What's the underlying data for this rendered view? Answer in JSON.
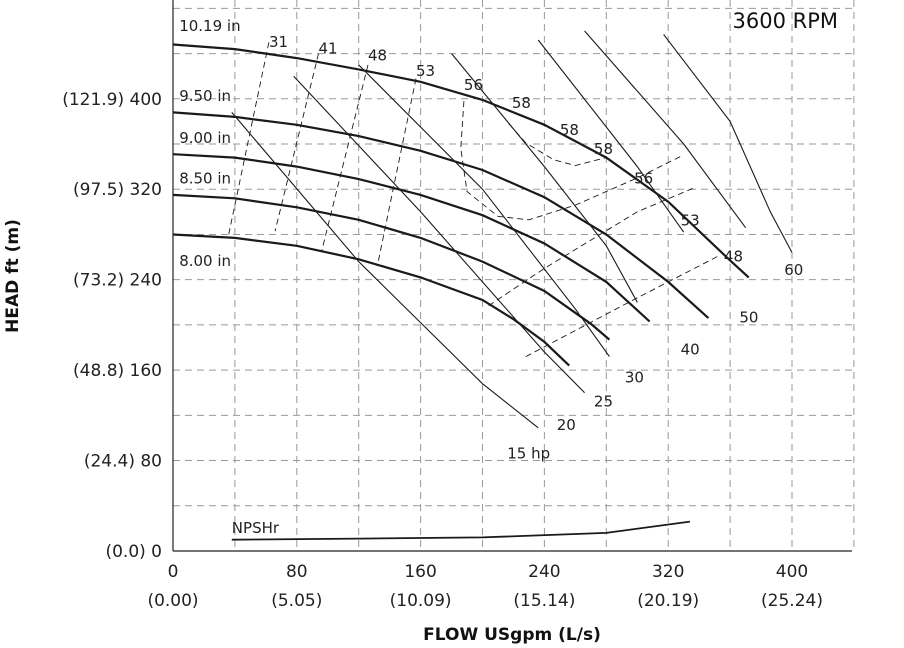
{
  "chart_data": {
    "type": "line",
    "title": "",
    "speed_label": "3600 RPM",
    "xlabel": "FLOW USgpm (L/s)",
    "ylabel": "HEAD ft (m)",
    "xlim": [
      0,
      440
    ],
    "ylim": [
      0,
      460
    ],
    "grid": true,
    "x_ticks": [
      {
        "value": 0,
        "label": "0",
        "sub": "(0.00)"
      },
      {
        "value": 80,
        "label": "80",
        "sub": "(5.05)"
      },
      {
        "value": 160,
        "label": "160",
        "sub": "(10.09)"
      },
      {
        "value": 240,
        "label": "240",
        "sub": "(15.14)"
      },
      {
        "value": 320,
        "label": "320",
        "sub": "(20.19)"
      },
      {
        "value": 400,
        "label": "400",
        "sub": "(25.24)"
      }
    ],
    "y_ticks": [
      {
        "value": 0,
        "label": "(0.0) 0"
      },
      {
        "value": 80,
        "label": "(24.4) 80"
      },
      {
        "value": 160,
        "label": "(48.8) 160"
      },
      {
        "value": 240,
        "label": "(73.2) 240"
      },
      {
        "value": 320,
        "label": "(97.5) 320"
      },
      {
        "value": 400,
        "label": "(121.9) 400"
      }
    ],
    "impeller_curves": [
      {
        "name": "10.19 in",
        "points": [
          [
            0,
            448
          ],
          [
            40,
            444
          ],
          [
            80,
            436
          ],
          [
            120,
            426
          ],
          [
            160,
            415
          ],
          [
            200,
            399
          ],
          [
            240,
            377
          ],
          [
            280,
            348
          ],
          [
            320,
            309
          ],
          [
            360,
            257
          ],
          [
            372,
            242
          ]
        ]
      },
      {
        "name": "9.50 in",
        "points": [
          [
            0,
            388
          ],
          [
            40,
            384
          ],
          [
            80,
            377
          ],
          [
            120,
            367
          ],
          [
            160,
            354
          ],
          [
            200,
            337
          ],
          [
            240,
            313
          ],
          [
            280,
            280
          ],
          [
            320,
            238
          ],
          [
            346,
            206
          ]
        ]
      },
      {
        "name": "9.00 in",
        "points": [
          [
            0,
            351
          ],
          [
            40,
            348
          ],
          [
            80,
            340
          ],
          [
            120,
            329
          ],
          [
            160,
            315
          ],
          [
            200,
            297
          ],
          [
            240,
            272
          ],
          [
            280,
            238
          ],
          [
            308,
            203
          ]
        ]
      },
      {
        "name": "8.50 in",
        "points": [
          [
            0,
            315
          ],
          [
            40,
            312
          ],
          [
            80,
            304
          ],
          [
            120,
            293
          ],
          [
            160,
            277
          ],
          [
            200,
            256
          ],
          [
            240,
            230
          ],
          [
            270,
            201
          ],
          [
            282,
            187
          ]
        ]
      },
      {
        "name": "8.00 in",
        "points": [
          [
            0,
            280
          ],
          [
            40,
            277
          ],
          [
            80,
            270
          ],
          [
            120,
            258
          ],
          [
            160,
            242
          ],
          [
            200,
            222
          ],
          [
            220,
            205
          ],
          [
            240,
            185
          ],
          [
            256,
            164
          ]
        ]
      }
    ],
    "hp_lines": [
      {
        "name": "15 hp",
        "points": [
          [
            38,
            388
          ],
          [
            120,
            256
          ],
          [
            200,
            148
          ],
          [
            236,
            109
          ]
        ]
      },
      {
        "name": "20",
        "points": [
          [
            78,
            420
          ],
          [
            160,
            300
          ],
          [
            240,
            176
          ],
          [
            266,
            140
          ]
        ]
      },
      {
        "name": "25",
        "points": [
          [
            120,
            430
          ],
          [
            200,
            320
          ],
          [
            260,
            214
          ],
          [
            282,
            172
          ]
        ]
      },
      {
        "name": "30",
        "points": [
          [
            180,
            440
          ],
          [
            240,
            340
          ],
          [
            280,
            270
          ],
          [
            300,
            220
          ]
        ]
      },
      {
        "name": "40",
        "points": [
          [
            236,
            452
          ],
          [
            300,
            340
          ],
          [
            330,
            282
          ]
        ]
      },
      {
        "name": "50",
        "points": [
          [
            266,
            460
          ],
          [
            330,
            360
          ],
          [
            370,
            286
          ]
        ]
      },
      {
        "name": "60",
        "points": [
          [
            317,
            457
          ],
          [
            360,
            380
          ],
          [
            386,
            300
          ],
          [
            400,
            264
          ]
        ]
      }
    ],
    "efficiency_contours": [
      {
        "name": "31",
        "points": [
          [
            62,
            450
          ],
          [
            36,
            280
          ]
        ]
      },
      {
        "name": "41",
        "points": [
          [
            94,
            440
          ],
          [
            66,
            283
          ]
        ]
      },
      {
        "name": "48",
        "points": [
          [
            126,
            430
          ],
          [
            96,
            265
          ]
        ]
      },
      {
        "name": "53",
        "points": [
          [
            157,
            418
          ],
          [
            132,
            252
          ]
        ]
      },
      {
        "name": "56",
        "points": [
          [
            188,
            398
          ],
          [
            186,
            356
          ],
          [
            190,
            318
          ],
          [
            210,
            296
          ],
          [
            230,
            293
          ],
          [
            260,
            306
          ],
          [
            300,
            330
          ],
          [
            328,
            349
          ]
        ]
      },
      {
        "name": "58",
        "points": [
          [
            217,
            378
          ],
          [
            228,
            361
          ],
          [
            246,
            346
          ],
          [
            260,
            341
          ],
          [
            280,
            348
          ]
        ]
      },
      {
        "name": "53",
        "points": [
          [
            204,
            217
          ],
          [
            240,
            250
          ],
          [
            300,
            300
          ],
          [
            338,
            322
          ]
        ]
      },
      {
        "name": "48",
        "points": [
          [
            228,
            172
          ],
          [
            300,
            224
          ],
          [
            354,
            262
          ]
        ]
      }
    ],
    "curve_labels": [
      {
        "text": "10.19 in",
        "x": 4,
        "y": 460
      },
      {
        "text": "9.50 in",
        "x": 4,
        "y": 398
      },
      {
        "text": "9.00 in",
        "x": 4,
        "y": 361
      },
      {
        "text": "8.50 in",
        "x": 4,
        "y": 325
      },
      {
        "text": "8.00 in",
        "x": 4,
        "y": 252
      },
      {
        "text": "31",
        "x": 62,
        "y": 446
      },
      {
        "text": "41",
        "x": 94,
        "y": 440
      },
      {
        "text": "48",
        "x": 126,
        "y": 434
      },
      {
        "text": "53",
        "x": 157,
        "y": 420
      },
      {
        "text": "56",
        "x": 188,
        "y": 408
      },
      {
        "text": "58",
        "x": 219,
        "y": 392
      },
      {
        "text": "58",
        "x": 250,
        "y": 368
      },
      {
        "text": "58",
        "x": 272,
        "y": 351
      },
      {
        "text": "56",
        "x": 298,
        "y": 325
      },
      {
        "text": "53",
        "x": 328,
        "y": 288
      },
      {
        "text": "48",
        "x": 356,
        "y": 256
      },
      {
        "text": "60",
        "x": 395,
        "y": 244
      },
      {
        "text": "50",
        "x": 366,
        "y": 202
      },
      {
        "text": "40",
        "x": 328,
        "y": 174
      },
      {
        "text": "30",
        "x": 292,
        "y": 149
      },
      {
        "text": "25",
        "x": 272,
        "y": 128
      },
      {
        "text": "20",
        "x": 248,
        "y": 107
      },
      {
        "text": "15 hp",
        "x": 216,
        "y": 82
      }
    ],
    "npshr": {
      "name": "NPSHr",
      "points": [
        [
          38,
          10
        ],
        [
          120,
          11
        ],
        [
          200,
          12
        ],
        [
          280,
          16
        ],
        [
          334,
          26
        ]
      ],
      "label_x": 38,
      "label_y": 16
    }
  }
}
